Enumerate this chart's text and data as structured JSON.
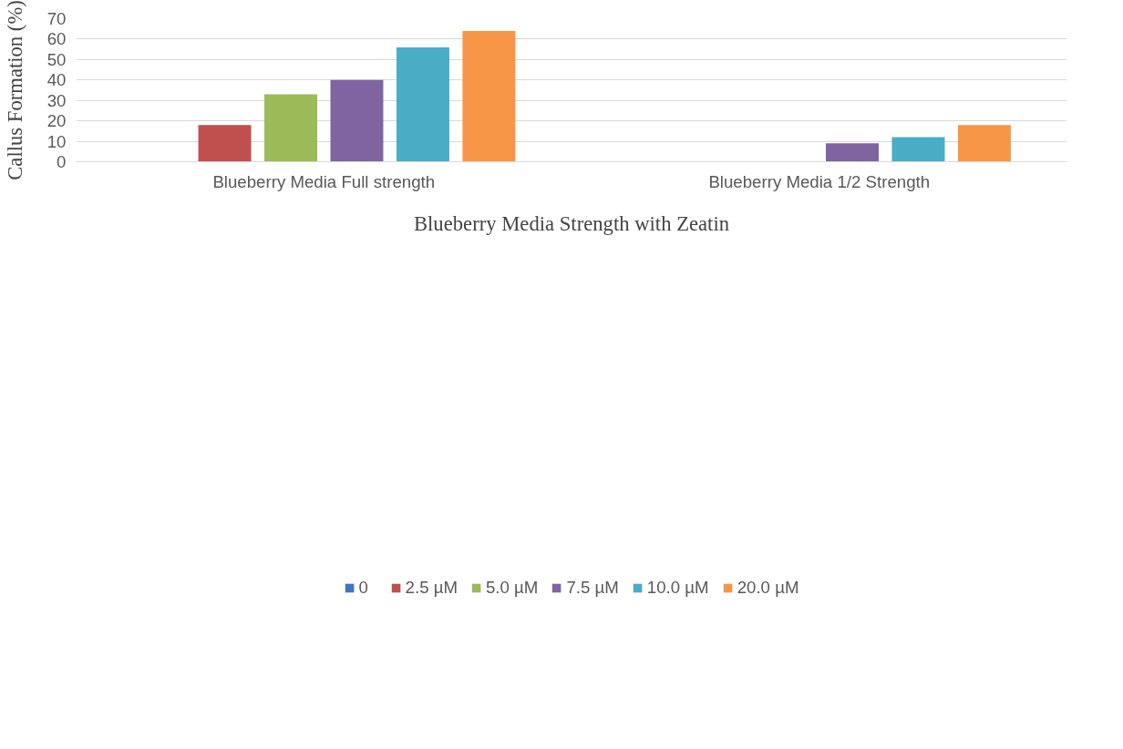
{
  "chart_data": {
    "type": "bar",
    "xlabel": "Blueberry Media Strength with Zeatin",
    "ylabel": "Callus Formation (%)",
    "categories": [
      "Blueberry Media Full strength",
      "Blueberry Media 1/2 Strength"
    ],
    "series": [
      {
        "name": "0",
        "color": "#4472c4",
        "values": [
          0,
          0
        ]
      },
      {
        "name": "2.5 µM",
        "color": "#c0504d",
        "values": [
          18,
          0
        ]
      },
      {
        "name": "5.0 µM",
        "color": "#9bbb59",
        "values": [
          33,
          0
        ]
      },
      {
        "name": "7.5 µM",
        "color": "#8064a2",
        "values": [
          40,
          9
        ]
      },
      {
        "name": "10.0 µM",
        "color": "#4bacc6",
        "values": [
          56,
          12
        ]
      },
      {
        "name": "20.0 µM",
        "color": "#f79646",
        "values": [
          64,
          18
        ]
      }
    ],
    "ylim": [
      0,
      70
    ],
    "yticks": [
      0,
      10,
      20,
      30,
      40,
      50,
      60,
      70
    ],
    "grid": "y",
    "legend": "bottom"
  }
}
